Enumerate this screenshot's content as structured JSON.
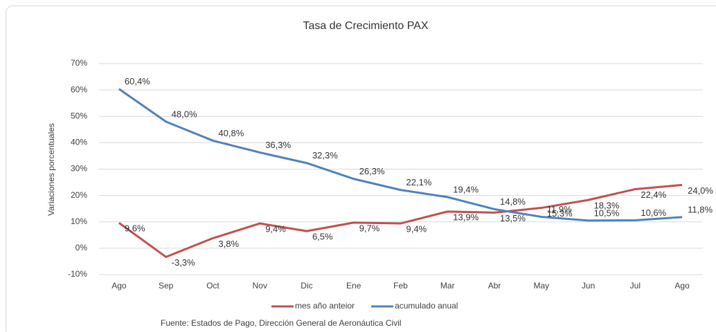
{
  "chart_data": {
    "type": "line",
    "title": "Tasa de Crecimiento PAX",
    "y_label": "Variaciones  porcentuales",
    "source": "Fuente: Estados de Pago, Dirección General de Aeronáutica Civil",
    "categories": [
      "Ago",
      "Sep",
      "Oct",
      "Nov",
      "Dic",
      "Ene",
      "Feb",
      "Mar",
      "Abr",
      "May",
      "Jun",
      "Jul",
      "Ago"
    ],
    "series": [
      {
        "name": "mes año anteior",
        "color": "#c0504d",
        "values": [
          9.6,
          -3.3,
          3.8,
          9.4,
          6.5,
          9.7,
          9.4,
          13.9,
          13.5,
          15.3,
          18.3,
          22.4,
          24.0
        ],
        "value_labels": [
          "9,6%",
          "-3,3%",
          "3,8%",
          "9,4%",
          "6,5%",
          "9,7%",
          "9,4%",
          "13,9%",
          "13,5%",
          "15,3%",
          "18,3%",
          "22,4%",
          "24,0%"
        ]
      },
      {
        "name": "acumulado anual",
        "color": "#4f81bd",
        "values": [
          60.4,
          48.0,
          40.8,
          36.3,
          32.3,
          26.3,
          22.1,
          19.4,
          14.8,
          11.9,
          10.5,
          10.6,
          11.8
        ],
        "value_labels": [
          "60,4%",
          "48,0%",
          "40,8%",
          "36,3%",
          "32,3%",
          "26,3%",
          "22,1%",
          "19,4%",
          "14,8%",
          "11,9%",
          "10,5%",
          "10,6%",
          "11,8%"
        ]
      }
    ],
    "ylim": [
      -10,
      70
    ],
    "yticks": [
      {
        "value": -10,
        "label": "-10%"
      },
      {
        "value": 0,
        "label": "0%"
      },
      {
        "value": 10,
        "label": "10%"
      },
      {
        "value": 20,
        "label": "20%"
      },
      {
        "value": 30,
        "label": "30%"
      },
      {
        "value": 40,
        "label": "40%"
      },
      {
        "value": 50,
        "label": "50%"
      },
      {
        "value": 60,
        "label": "60%"
      },
      {
        "value": 70,
        "label": "70%"
      }
    ],
    "grid": true,
    "legend": "bottom"
  }
}
